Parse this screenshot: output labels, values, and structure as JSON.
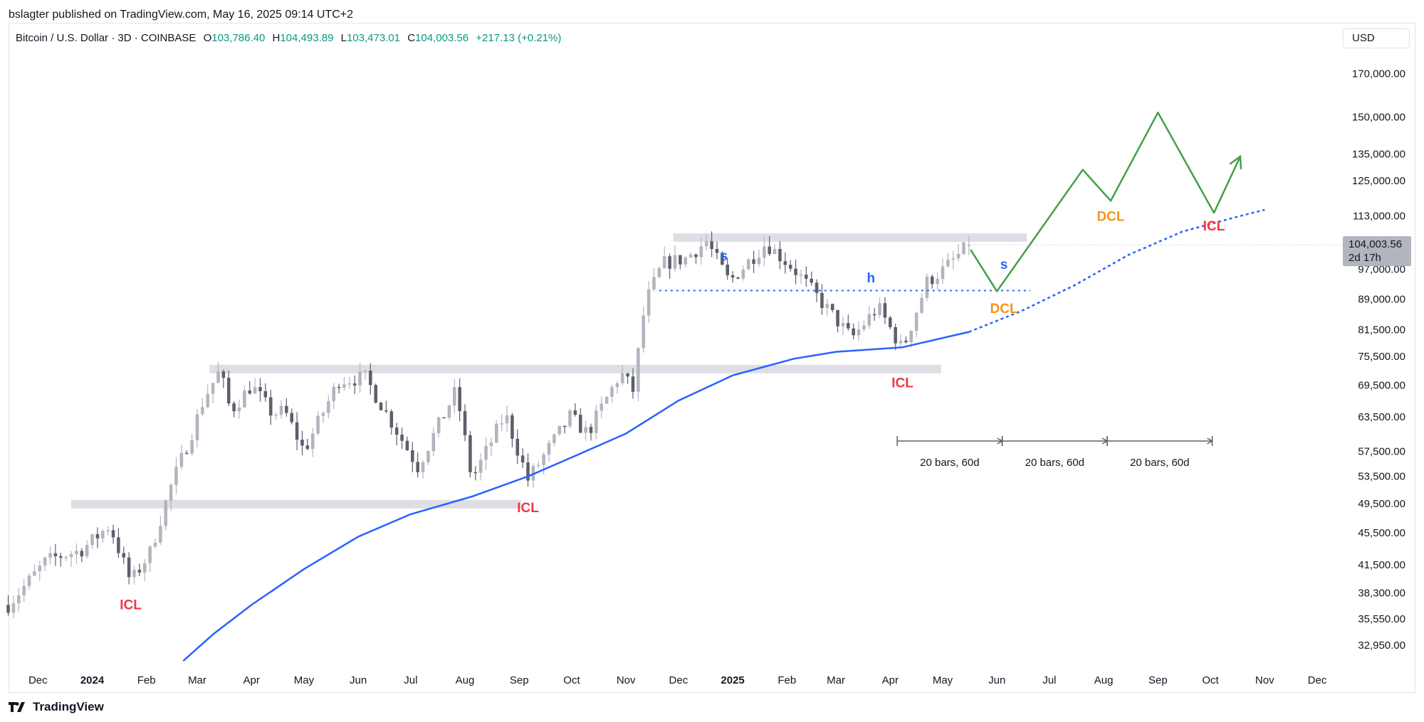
{
  "header": {
    "publisher_line": "bslagter published on TradingView.com, May 16, 2025 09:14 UTC+2",
    "symbol": "Bitcoin / U.S. Dollar · 3D · COINBASE",
    "ohlc": {
      "o_label": "O",
      "o": "103,786.40",
      "h_label": "H",
      "h": "104,493.89",
      "l_label": "L",
      "l": "103,473.01",
      "c_label": "C",
      "c": "104,003.56",
      "change": "+217.13 (+0.21%)"
    },
    "currency": "USD"
  },
  "footer": {
    "brand": "TradingView"
  },
  "colors": {
    "up": "#b2b5be",
    "down": "#5d606b",
    "ma": "#2962ff",
    "projection": "#43a047",
    "icl": "#f23645",
    "dcl": "#f7931a",
    "label_blue": "#2962ff",
    "zone": "#d1d4dc",
    "price_tag": "#b2b5be"
  },
  "chart_data": {
    "type": "candlestick",
    "scale": "log",
    "ylim": [
      30500,
      182000
    ],
    "y_ticks": [
      "170,000.00",
      "150,000.00",
      "135,000.00",
      "125,000.00",
      "113,000.00",
      "97,000.00",
      "89,000.00",
      "81,500.00",
      "75,500.00",
      "69,500.00",
      "63,500.00",
      "57,500.00",
      "53,500.00",
      "49,500.00",
      "45,500.00",
      "41,500.00",
      "38,300.00",
      "35,550.00",
      "32,950.00"
    ],
    "x_ticks": [
      {
        "label": "Dec",
        "date": "2023-12-01",
        "bold": false
      },
      {
        "label": "2024",
        "date": "2024-01-01",
        "bold": true
      },
      {
        "label": "Feb",
        "date": "2024-02-01",
        "bold": false
      },
      {
        "label": "Mar",
        "date": "2024-03-01",
        "bold": false
      },
      {
        "label": "Apr",
        "date": "2024-04-01",
        "bold": false
      },
      {
        "label": "May",
        "date": "2024-05-01",
        "bold": false
      },
      {
        "label": "Jun",
        "date": "2024-06-01",
        "bold": false
      },
      {
        "label": "Jul",
        "date": "2024-07-01",
        "bold": false
      },
      {
        "label": "Aug",
        "date": "2024-08-01",
        "bold": false
      },
      {
        "label": "Sep",
        "date": "2024-09-01",
        "bold": false
      },
      {
        "label": "Oct",
        "date": "2024-10-01",
        "bold": false
      },
      {
        "label": "Nov",
        "date": "2024-11-01",
        "bold": false
      },
      {
        "label": "Dec",
        "date": "2024-12-01",
        "bold": false
      },
      {
        "label": "2025",
        "date": "2025-01-01",
        "bold": true
      },
      {
        "label": "Feb",
        "date": "2025-02-01",
        "bold": false
      },
      {
        "label": "Mar",
        "date": "2025-03-01",
        "bold": false
      },
      {
        "label": "Apr",
        "date": "2025-04-01",
        "bold": false
      },
      {
        "label": "May",
        "date": "2025-05-01",
        "bold": false
      },
      {
        "label": "Jun",
        "date": "2025-06-01",
        "bold": false
      },
      {
        "label": "Jul",
        "date": "2025-07-01",
        "bold": false
      },
      {
        "label": "Aug",
        "date": "2025-08-01",
        "bold": false
      },
      {
        "label": "Sep",
        "date": "2025-09-01",
        "bold": false
      },
      {
        "label": "Oct",
        "date": "2025-10-01",
        "bold": false
      },
      {
        "label": "Nov",
        "date": "2025-11-01",
        "bold": false
      },
      {
        "label": "Dec",
        "date": "2025-12-01",
        "bold": false
      }
    ],
    "price_path": [
      [
        "2023-11-14",
        37000
      ],
      [
        "2023-12-05",
        41800
      ],
      [
        "2023-12-12",
        42500
      ],
      [
        "2023-12-25",
        43200
      ],
      [
        "2024-01-01",
        44500
      ],
      [
        "2024-01-11",
        46500
      ],
      [
        "2024-01-23",
        39500
      ],
      [
        "2024-02-03",
        43000
      ],
      [
        "2024-02-15",
        52000
      ],
      [
        "2024-02-28",
        61500
      ],
      [
        "2024-03-05",
        67000
      ],
      [
        "2024-03-14",
        72500
      ],
      [
        "2024-03-20",
        64500
      ],
      [
        "2024-04-01",
        69500
      ],
      [
        "2024-04-13",
        64000
      ],
      [
        "2024-04-20",
        64500
      ],
      [
        "2024-05-01",
        57500
      ],
      [
        "2024-05-21",
        70500
      ],
      [
        "2024-06-05",
        71000
      ],
      [
        "2024-06-24",
        60500
      ],
      [
        "2024-07-05",
        55000
      ],
      [
        "2024-07-27",
        68500
      ],
      [
        "2024-08-05",
        53000
      ],
      [
        "2024-08-24",
        64000
      ],
      [
        "2024-09-06",
        53000
      ],
      [
        "2024-09-30",
        63500
      ],
      [
        "2024-10-10",
        60500
      ],
      [
        "2024-10-29",
        72000
      ],
      [
        "2024-11-05",
        68500
      ],
      [
        "2024-11-12",
        88000
      ],
      [
        "2024-11-22",
        98500
      ],
      [
        "2024-12-05",
        100000
      ],
      [
        "2024-12-17",
        105000
      ],
      [
        "2024-12-30",
        93500
      ],
      [
        "2025-01-20",
        104500
      ],
      [
        "2025-02-05",
        97000
      ],
      [
        "2025-02-25",
        86000
      ],
      [
        "2025-03-10",
        79500
      ],
      [
        "2025-03-25",
        87000
      ],
      [
        "2025-04-08",
        77000
      ],
      [
        "2025-04-22",
        93500
      ],
      [
        "2025-05-02",
        97000
      ],
      [
        "2025-05-16",
        104003
      ]
    ],
    "last_candle": {
      "date": "2025-05-16",
      "open": 103786.4,
      "high": 104493.89,
      "low": 103473.01,
      "close": 104003.56
    },
    "moving_average": {
      "solid": [
        [
          "2024-02-22",
          31500
        ],
        [
          "2024-03-10",
          34000
        ],
        [
          "2024-04-01",
          37000
        ],
        [
          "2024-05-01",
          41000
        ],
        [
          "2024-06-01",
          45000
        ],
        [
          "2024-07-01",
          48000
        ],
        [
          "2024-08-05",
          50500
        ],
        [
          "2024-09-06",
          53500
        ],
        [
          "2024-10-01",
          56500
        ],
        [
          "2024-11-01",
          60500
        ],
        [
          "2024-12-01",
          66500
        ],
        [
          "2025-01-01",
          71500
        ],
        [
          "2025-02-05",
          75000
        ],
        [
          "2025-03-01",
          76500
        ],
        [
          "2025-04-08",
          77500
        ],
        [
          "2025-05-16",
          81000
        ]
      ],
      "dashed": [
        [
          "2025-05-16",
          81000
        ],
        [
          "2025-06-15",
          86000
        ],
        [
          "2025-07-15",
          92500
        ],
        [
          "2025-08-15",
          101000
        ],
        [
          "2025-09-15",
          108000
        ],
        [
          "2025-10-15",
          112500
        ],
        [
          "2025-11-01",
          115000
        ]
      ]
    },
    "zones": [
      {
        "from": "2023-12-20",
        "to": "2024-09-02",
        "price": 49400
      },
      {
        "from": "2024-03-08",
        "to": "2025-04-30",
        "price": 72800
      },
      {
        "from": "2024-11-28",
        "to": "2025-06-18",
        "price": 106200
      }
    ],
    "neckline": {
      "from": "2024-11-20",
      "to": "2025-06-20",
      "price": 91200
    },
    "projection": [
      [
        "2025-05-17",
        102500
      ],
      [
        "2025-06-01",
        91000
      ],
      [
        "2025-07-20",
        129000
      ],
      [
        "2025-08-05",
        118000
      ],
      [
        "2025-09-01",
        152000
      ],
      [
        "2025-10-03",
        114000
      ],
      [
        "2025-10-18",
        134000
      ]
    ],
    "annotations": [
      {
        "text": "ICL",
        "type": "icl",
        "date": "2024-01-23",
        "price": 36900
      },
      {
        "text": "ICL",
        "type": "icl",
        "date": "2024-09-06",
        "price": 48800
      },
      {
        "text": "ICL",
        "type": "icl",
        "date": "2025-04-08",
        "price": 69800
      },
      {
        "text": "ICL",
        "type": "icl",
        "date": "2025-10-03",
        "price": 109500
      },
      {
        "text": "DCL",
        "type": "dcl",
        "date": "2025-06-05",
        "price": 86400
      },
      {
        "text": "DCL",
        "type": "dcl",
        "date": "2025-08-05",
        "price": 112500
      },
      {
        "text": "s",
        "type": "blue",
        "date": "2024-12-27",
        "price": 100500
      },
      {
        "text": "h",
        "type": "blue",
        "date": "2025-03-21",
        "price": 94300
      },
      {
        "text": "s",
        "type": "blue",
        "date": "2025-06-05",
        "price": 98000
      }
    ],
    "ranges": [
      {
        "from": "2025-04-05",
        "to": "2025-06-04",
        "label": "20 bars, 60d"
      },
      {
        "from": "2025-06-04",
        "to": "2025-08-03",
        "label": "20 bars, 60d"
      },
      {
        "from": "2025-08-03",
        "to": "2025-10-02",
        "label": "20 bars, 60d"
      }
    ],
    "price_tag": {
      "price": "104,003.56",
      "countdown": "2d 17h"
    }
  }
}
